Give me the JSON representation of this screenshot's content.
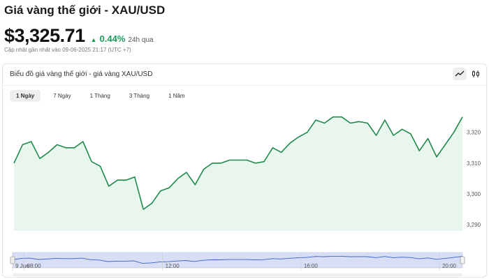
{
  "header": {
    "title": "Giá vàng thế giới - XAU/USD",
    "price": "$3,325.71",
    "change": "0.44%",
    "change_period": "24h qua",
    "updated": "Cập nhật gần nhất vào 09-06-2025 21:17 (UTC +7)"
  },
  "card": {
    "title": "Biểu đồ giá vàng thế giới - giá vàng XAU/USD",
    "chart_types": [
      "line-chart-icon",
      "candlestick-icon"
    ],
    "tabs": [
      {
        "label": "1 Ngày",
        "active": true
      },
      {
        "label": "7 Ngày",
        "active": false
      },
      {
        "label": "1 Tháng",
        "active": false
      },
      {
        "label": "3 Tháng",
        "active": false
      },
      {
        "label": "1 Năm",
        "active": false
      }
    ]
  },
  "colors": {
    "accent_green": "#1b9c5a",
    "line": "#1f8a4c",
    "area": "#e9f6ee",
    "navigator_fill": "#d7def6",
    "navigator_line": "#3a63c8"
  },
  "chart_data": {
    "type": "area",
    "xlabel": "",
    "ylabel": "",
    "ylim": [
      3288,
      3329
    ],
    "xlim": [
      "07:40",
      "20:40"
    ],
    "y_ticks": [
      "3,290",
      "3,300",
      "3,310",
      "3,320"
    ],
    "y_tick_values": [
      3290,
      3300,
      3310,
      3320
    ],
    "navigator_ticks": [
      "9 Jun",
      "08:00",
      "12:00",
      "16:00",
      "20:00"
    ],
    "navigator_tick_times": [
      "07:40",
      "08:00",
      "12:00",
      "16:00",
      "20:00"
    ],
    "x": [
      "07:40",
      "07:55",
      "08:10",
      "08:25",
      "08:40",
      "08:55",
      "09:10",
      "09:25",
      "09:40",
      "09:55",
      "10:10",
      "10:25",
      "10:40",
      "10:55",
      "11:10",
      "11:25",
      "11:40",
      "11:55",
      "12:10",
      "12:25",
      "12:40",
      "12:55",
      "13:10",
      "13:25",
      "13:40",
      "13:55",
      "14:10",
      "14:25",
      "14:40",
      "14:55",
      "15:10",
      "15:25",
      "15:40",
      "15:55",
      "16:10",
      "16:25",
      "16:40",
      "16:55",
      "17:10",
      "17:25",
      "17:40",
      "17:55",
      "18:10",
      "18:25",
      "18:40",
      "18:55",
      "19:10",
      "19:25",
      "19:40",
      "19:55",
      "20:10",
      "20:25",
      "20:40"
    ],
    "values": [
      3310,
      3316,
      3317,
      3311.5,
      3313.5,
      3316,
      3315,
      3315,
      3317,
      3310.5,
      3309,
      3302.5,
      3304.5,
      3304.5,
      3305.5,
      3295,
      3297,
      3301,
      3302,
      3305,
      3307,
      3303,
      3308,
      3310,
      3310,
      3311,
      3311,
      3311,
      3310,
      3310.5,
      3315,
      3313.5,
      3316.5,
      3318.5,
      3320,
      3324,
      3323,
      3325,
      3325,
      3323,
      3323.5,
      3323,
      3319,
      3324,
      3319,
      3321,
      3319.5,
      3314,
      3318,
      3312,
      3316,
      3320,
      3325
    ]
  }
}
